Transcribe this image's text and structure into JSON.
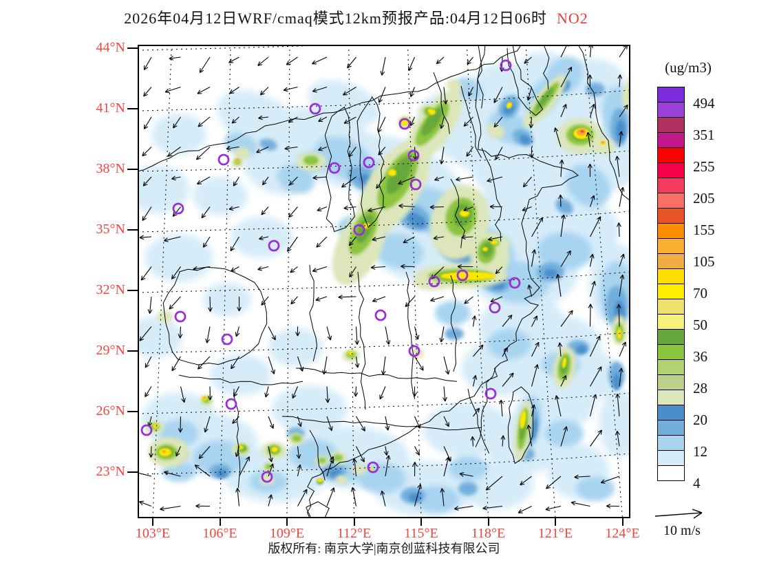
{
  "title": {
    "text": "2026年04月12日WRF/cmaq模式12km预报产品:04月12日06时",
    "species": "NO2"
  },
  "colors": {
    "axis_label": "#f0463e",
    "species_label": "#f03a34",
    "city_marker": "#9b2fd6"
  },
  "axes": {
    "lat": [
      "44°N",
      "41°N",
      "38°N",
      "35°N",
      "32°N",
      "29°N",
      "26°N",
      "23°N"
    ],
    "lon": [
      "103°E",
      "106°E",
      "109°E",
      "112°E",
      "115°E",
      "118°E",
      "121°E",
      "124°E"
    ]
  },
  "colorbar": {
    "units": "(ug/m3)",
    "tick_labels": [
      "494",
      "351",
      "255",
      "205",
      "155",
      "105",
      "70",
      "50",
      "36",
      "28",
      "20",
      "12",
      "4"
    ],
    "cell_colors": [
      "#7c2bdb",
      "#9a41d9",
      "#b03062",
      "#c3188c",
      "#fa0000",
      "#f5004b",
      "#f23b5f",
      "#fa6e66",
      "#e85426",
      "#fc8d00",
      "#f9b032",
      "#f2ac45",
      "#ffdf00",
      "#ffec00",
      "#efdf6b",
      "#f6f27b",
      "#68a83b",
      "#8bc43f",
      "#b2d272",
      "#bdd089",
      "#dce6ba",
      "#4a8fcc",
      "#72aedc",
      "#a8d4f0",
      "#d4ebf8",
      "#ffffff"
    ]
  },
  "wind_legend": {
    "label": "10 m/s"
  },
  "footer": {
    "text": "版权所有: 南京大学|南京创蓝科技有限公司"
  }
}
